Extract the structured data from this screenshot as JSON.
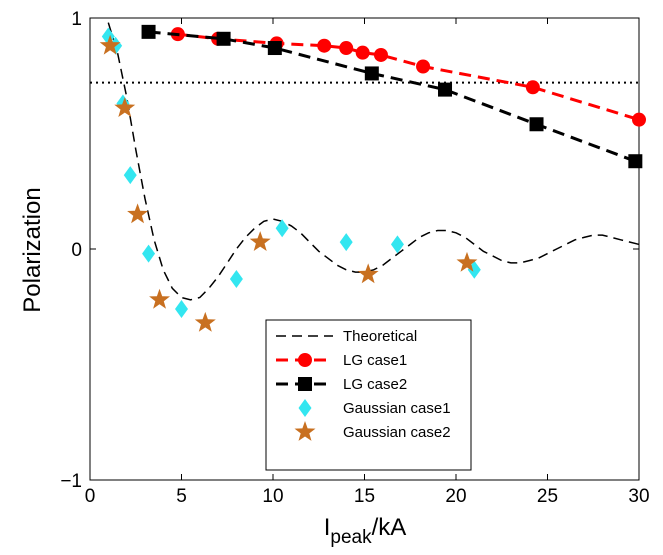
{
  "chart_data": {
    "type": "line",
    "xlabel_main": "I",
    "xlabel_sub": "peak",
    "xlabel_tail": "/kA",
    "ylabel": "Polarization",
    "xlim": [
      0,
      30
    ],
    "ylim": [
      -1,
      1
    ],
    "xticks": [
      0,
      5,
      10,
      15,
      20,
      25,
      30
    ],
    "yticks": [
      -1,
      0,
      1
    ],
    "grid": false,
    "legend_position": "bottom-right",
    "reference_line": {
      "y": 0.72,
      "style": "dotted",
      "color": "#000000"
    },
    "series": [
      {
        "name": "Theoretical",
        "style": "dashed-line",
        "color": "#000000",
        "points": [
          [
            1,
            0.98
          ],
          [
            1.5,
            0.85
          ],
          [
            2,
            0.66
          ],
          [
            2.5,
            0.43
          ],
          [
            3,
            0.22
          ],
          [
            3.5,
            0.04
          ],
          [
            4,
            -0.09
          ],
          [
            4.5,
            -0.17
          ],
          [
            5,
            -0.21
          ],
          [
            5.5,
            -0.22
          ],
          [
            6,
            -0.21
          ],
          [
            6.5,
            -0.17
          ],
          [
            7,
            -0.12
          ],
          [
            7.5,
            -0.06
          ],
          [
            8,
            0.0
          ],
          [
            8.5,
            0.05
          ],
          [
            9,
            0.09
          ],
          [
            9.5,
            0.12
          ],
          [
            10,
            0.13
          ],
          [
            10.5,
            0.12
          ],
          [
            11,
            0.1
          ],
          [
            11.5,
            0.07
          ],
          [
            12,
            0.03
          ],
          [
            12.5,
            -0.01
          ],
          [
            13,
            -0.04
          ],
          [
            13.5,
            -0.07
          ],
          [
            14,
            -0.09
          ],
          [
            14.5,
            -0.1
          ],
          [
            15,
            -0.1
          ],
          [
            15.5,
            -0.09
          ],
          [
            16,
            -0.07
          ],
          [
            16.5,
            -0.04
          ],
          [
            17,
            -0.01
          ],
          [
            17.5,
            0.02
          ],
          [
            18,
            0.05
          ],
          [
            18.5,
            0.07
          ],
          [
            19,
            0.08
          ],
          [
            19.5,
            0.08
          ],
          [
            20,
            0.07
          ],
          [
            20.5,
            0.05
          ],
          [
            21,
            0.02
          ],
          [
            21.5,
            -0.01
          ],
          [
            22,
            -0.03
          ],
          [
            22.5,
            -0.05
          ],
          [
            23,
            -0.06
          ],
          [
            23.5,
            -0.06
          ],
          [
            24,
            -0.05
          ],
          [
            24.5,
            -0.04
          ],
          [
            25,
            -0.02
          ],
          [
            25.5,
            0.0
          ],
          [
            26,
            0.02
          ],
          [
            26.5,
            0.04
          ],
          [
            27,
            0.05
          ],
          [
            27.5,
            0.06
          ],
          [
            28,
            0.06
          ],
          [
            28.5,
            0.05
          ],
          [
            29,
            0.04
          ],
          [
            29.5,
            0.03
          ],
          [
            30,
            0.02
          ]
        ]
      },
      {
        "name": "LG case1",
        "style": "dashed-circle",
        "color": "#ff0000",
        "points": [
          [
            4.8,
            0.93
          ],
          [
            7,
            0.91
          ],
          [
            10.2,
            0.89
          ],
          [
            12.8,
            0.88
          ],
          [
            14,
            0.87
          ],
          [
            14.9,
            0.85
          ],
          [
            15.9,
            0.84
          ],
          [
            18.2,
            0.79
          ],
          [
            24.2,
            0.7
          ],
          [
            30,
            0.56
          ]
        ]
      },
      {
        "name": "LG case2",
        "style": "dashed-square",
        "color": "#000000",
        "points": [
          [
            3.2,
            0.94
          ],
          [
            7.3,
            0.91
          ],
          [
            10.1,
            0.87
          ],
          [
            15.4,
            0.76
          ],
          [
            19.4,
            0.69
          ],
          [
            24.4,
            0.54
          ],
          [
            29.8,
            0.38
          ]
        ]
      },
      {
        "name": "Gaussian case1",
        "style": "diamond",
        "color": "#33e6f0",
        "points": [
          [
            1,
            0.92
          ],
          [
            1.4,
            0.88
          ],
          [
            1.8,
            0.63
          ],
          [
            2.2,
            0.32
          ],
          [
            3.2,
            -0.02
          ],
          [
            5,
            -0.26
          ],
          [
            8,
            -0.13
          ],
          [
            10.5,
            0.09
          ],
          [
            14,
            0.03
          ],
          [
            16.8,
            0.02
          ],
          [
            21,
            -0.09
          ]
        ]
      },
      {
        "name": "Gaussian case2",
        "style": "star",
        "color": "#c87020",
        "points": [
          [
            1.1,
            0.88
          ],
          [
            1.9,
            0.61
          ],
          [
            2.6,
            0.15
          ],
          [
            3.8,
            -0.22
          ],
          [
            6.3,
            -0.32
          ],
          [
            9.3,
            0.03
          ],
          [
            15.2,
            -0.11
          ],
          [
            20.6,
            -0.06
          ]
        ]
      }
    ]
  }
}
